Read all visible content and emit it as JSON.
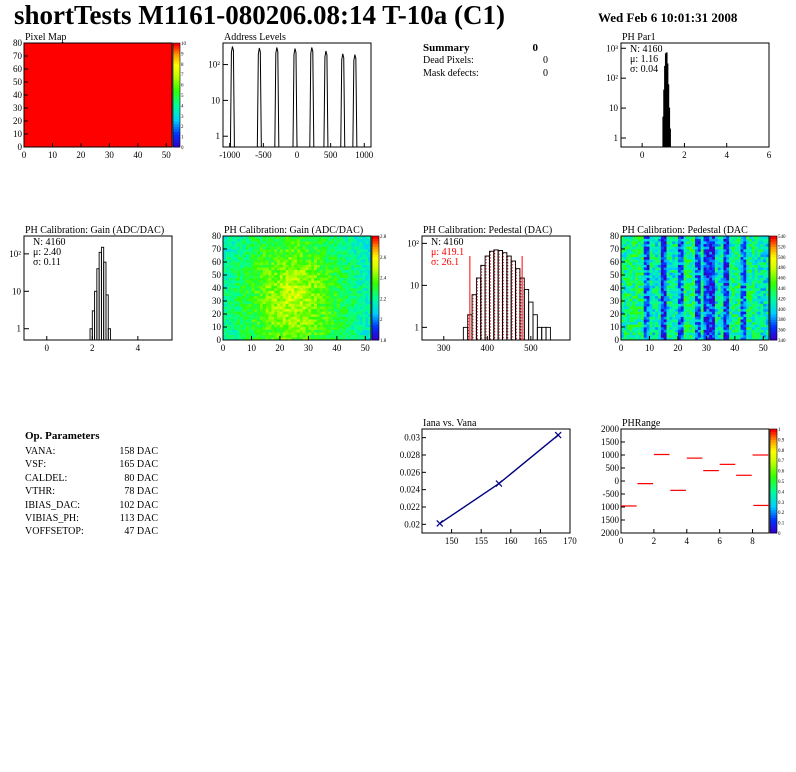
{
  "header": {
    "title": "shortTests M1161-080206.08:14 T-10a (C1)",
    "date": "Wed Feb  6 10:01:31 2008"
  },
  "summary": {
    "heading": "Summary",
    "heading_value": "0",
    "rows": [
      {
        "label": "Dead Pixels:",
        "value": "0"
      },
      {
        "label": "Mask defects:",
        "value": "0"
      }
    ]
  },
  "op_parameters": {
    "heading": "Op. Parameters",
    "rows": [
      {
        "label": "VANA:",
        "value": "158 DAC"
      },
      {
        "label": "VSF:",
        "value": "165 DAC"
      },
      {
        "label": "CALDEL:",
        "value": "80 DAC"
      },
      {
        "label": "VTHR:",
        "value": "78 DAC"
      },
      {
        "label": "IBIAS_DAC:",
        "value": "102 DAC"
      },
      {
        "label": "VIBIAS_PH:",
        "value": "113 DAC"
      },
      {
        "label": "VOFFSETOP:",
        "value": "47 DAC"
      }
    ]
  },
  "chart_data": [
    {
      "id": "pixel-map",
      "type": "heatmap",
      "title": "Pixel Map",
      "xlim": [
        0,
        52
      ],
      "ylim": [
        0,
        80
      ],
      "x_ticks": [
        "0",
        "10",
        "20",
        "30",
        "40",
        "50"
      ],
      "y_ticks": [
        "0",
        "10",
        "20",
        "30",
        "40",
        "50",
        "60",
        "70",
        "80"
      ],
      "z_ticks": [
        "0",
        "1",
        "2",
        "3",
        "4",
        "5",
        "6",
        "7",
        "8",
        "9",
        "10"
      ],
      "zlim": [
        0,
        10
      ],
      "uniform_value": 10,
      "uniform_color": "#ff0000"
    },
    {
      "id": "address-levels",
      "type": "bar",
      "title": "Address Levels",
      "xlim": [
        -1100,
        1100
      ],
      "ylim": [
        0.5,
        400
      ],
      "log_y": true,
      "x_ticks": [
        "-1000",
        "-500",
        "0",
        "500",
        "1000"
      ],
      "y_ticks": [
        "1",
        "10",
        "10²"
      ],
      "peaks": [
        {
          "x": -960,
          "y": 320
        },
        {
          "x": -560,
          "y": 290
        },
        {
          "x": -300,
          "y": 300
        },
        {
          "x": -30,
          "y": 280
        },
        {
          "x": 220,
          "y": 300
        },
        {
          "x": 430,
          "y": 240
        },
        {
          "x": 680,
          "y": 200
        },
        {
          "x": 860,
          "y": 190
        }
      ]
    },
    {
      "id": "ph-par1",
      "type": "bar",
      "title": "PH Par1",
      "xlim": [
        -1,
        6
      ],
      "ylim": [
        0.5,
        1500
      ],
      "log_y": true,
      "x_ticks": [
        "0",
        "2",
        "4",
        "6"
      ],
      "y_ticks": [
        "1",
        "10",
        "10²",
        "10³"
      ],
      "stats": {
        "N": "N: 4160",
        "mu": "μ: 1.16",
        "sigma": "σ: 0.04"
      },
      "histogram": {
        "x": [
          1.0,
          1.04,
          1.08,
          1.12,
          1.16,
          1.2,
          1.24,
          1.28,
          1.32
        ],
        "y": [
          5,
          40,
          250,
          650,
          700,
          300,
          60,
          10,
          2
        ]
      }
    },
    {
      "id": "ph-gain-hist",
      "type": "bar",
      "title": "PH Calibration: Gain (ADC/DAC)",
      "xlim": [
        -1,
        5.5
      ],
      "ylim": [
        0.5,
        300
      ],
      "log_y": true,
      "x_ticks": [
        "0",
        "2",
        "4"
      ],
      "y_ticks": [
        "1",
        "10",
        "10²"
      ],
      "stats": {
        "N": "N: 4160",
        "mu": "μ: 2.40",
        "sigma": "σ: 0.11"
      },
      "histogram": {
        "x": [
          1.95,
          2.05,
          2.15,
          2.25,
          2.35,
          2.45,
          2.55,
          2.65,
          2.75
        ],
        "y": [
          1,
          3,
          10,
          40,
          110,
          150,
          60,
          8,
          1
        ]
      }
    },
    {
      "id": "ph-gain-map",
      "type": "heatmap",
      "title": "PH Calibration: Gain (ADC/DAC)",
      "xlim": [
        0,
        52
      ],
      "ylim": [
        0,
        80
      ],
      "x_ticks": [
        "0",
        "10",
        "20",
        "30",
        "40",
        "50"
      ],
      "y_ticks": [
        "0",
        "10",
        "20",
        "30",
        "40",
        "50",
        "60",
        "70",
        "80"
      ],
      "z_ticks": [
        "1.8",
        "2",
        "2.2",
        "2.4",
        "2.6",
        "2.8"
      ],
      "zlim": [
        1.8,
        2.9
      ]
    },
    {
      "id": "ph-pedestal-hist",
      "type": "bar",
      "title": "PH Calibration: Pedestal (DAC)",
      "xlim": [
        250,
        590
      ],
      "ylim": [
        0.5,
        150
      ],
      "log_y": true,
      "x_ticks": [
        "300",
        "400",
        "500"
      ],
      "y_ticks": [
        "1",
        "10",
        "10²"
      ],
      "stats": {
        "N": "N: 4160",
        "mu": "μ: 419.1",
        "sigma": "σ: 26.1"
      },
      "cut_lines": [
        360,
        480
      ],
      "histogram": {
        "x": [
          350,
          360,
          370,
          380,
          390,
          400,
          410,
          420,
          430,
          440,
          450,
          460,
          470,
          480,
          490,
          500,
          510,
          520,
          530,
          540
        ],
        "y": [
          1,
          2,
          6,
          15,
          30,
          50,
          65,
          70,
          68,
          60,
          50,
          38,
          25,
          15,
          8,
          4,
          2,
          1,
          1,
          1
        ]
      }
    },
    {
      "id": "ph-pedestal-map",
      "type": "heatmap",
      "title": "PH Calibration: Pedestal (DAC",
      "xlim": [
        0,
        52
      ],
      "ylim": [
        0,
        80
      ],
      "x_ticks": [
        "0",
        "10",
        "20",
        "30",
        "40",
        "50"
      ],
      "y_ticks": [
        "0",
        "10",
        "20",
        "30",
        "40",
        "50",
        "60",
        "70",
        "80"
      ],
      "z_ticks": [
        "340",
        "360",
        "380",
        "400",
        "420",
        "440",
        "460",
        "480",
        "500",
        "520",
        "540"
      ],
      "zlim": [
        330,
        550
      ]
    },
    {
      "id": "iana-vs-vana",
      "type": "line",
      "title": "Iana vs. Vana",
      "xlim": [
        145,
        170
      ],
      "ylim": [
        0.019,
        0.031
      ],
      "x_ticks": [
        "150",
        "155",
        "160",
        "165",
        "170"
      ],
      "y_ticks": [
        "0.02",
        "0.022",
        "0.024",
        "0.026",
        "0.028",
        "0.03"
      ],
      "series": [
        {
          "x": [
            148,
            158,
            168
          ],
          "y": [
            0.0201,
            0.0247,
            0.0303
          ]
        }
      ]
    },
    {
      "id": "ph-range",
      "type": "scatter",
      "title": "PHRange",
      "xlim": [
        0,
        9
      ],
      "ylim": [
        -2000,
        2000
      ],
      "x_ticks": [
        "0",
        "2",
        "4",
        "6",
        "8"
      ],
      "y_ticks": [
        "2000",
        "1500",
        "1000",
        "500",
        "0",
        "-500",
        "1000",
        "1500",
        "2000"
      ],
      "z_ticks": [
        "0",
        "0.1",
        "0.2",
        "0.3",
        "0.4",
        "0.5",
        "0.6",
        "0.7",
        "0.8",
        "0.9",
        "1"
      ],
      "segments": [
        {
          "x": 0,
          "y": -960
        },
        {
          "x": 1,
          "y": -100
        },
        {
          "x": 2,
          "y": 1020
        },
        {
          "x": 3,
          "y": -360
        },
        {
          "x": 4,
          "y": 880
        },
        {
          "x": 5,
          "y": 400
        },
        {
          "x": 6,
          "y": 640
        },
        {
          "x": 7,
          "y": 220
        },
        {
          "x": 8,
          "y": 1000
        },
        {
          "x": 8.95,
          "y": -940
        }
      ]
    }
  ]
}
